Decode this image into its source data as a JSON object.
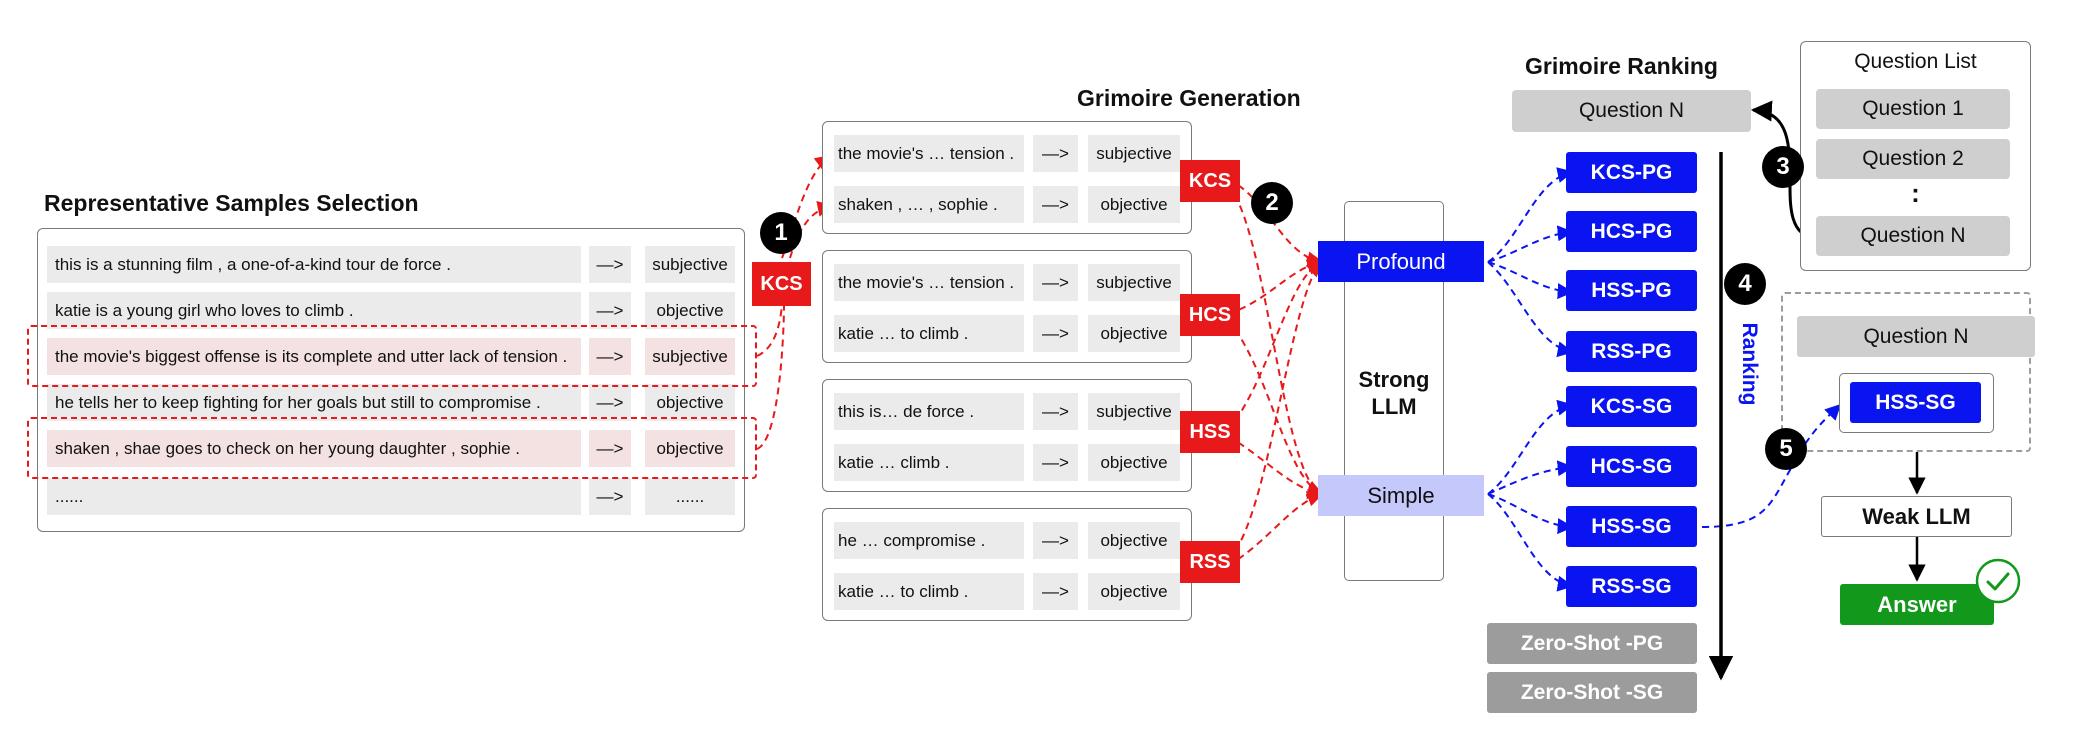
{
  "representative": {
    "title": "Representative Samples Selection",
    "rows": [
      {
        "text": "this is a stunning film , a one-of-a-kind tour de force .",
        "arrow": "—>",
        "label": "subjective"
      },
      {
        "text": "katie is a young girl who loves to climb .",
        "arrow": "—>",
        "label": "objective"
      },
      {
        "text": "the movie's biggest offense is its complete and utter lack of tension .",
        "arrow": "—>",
        "label": "subjective"
      },
      {
        "text": "he tells her to keep fighting for her goals but still to compromise .",
        "arrow": "—>",
        "label": "objective"
      },
      {
        "text": "shaken , shae goes to check on her young daughter , sophie .",
        "arrow": "—>",
        "label": "objective"
      },
      {
        "text": "......",
        "arrow": "—>",
        "label": "......"
      }
    ]
  },
  "generation": {
    "title": "Grimoire Generation",
    "groups": [
      {
        "method": "KCS",
        "rows": [
          {
            "text": "the movie's … tension .",
            "arrow": "—>",
            "label": "subjective"
          },
          {
            "text": "shaken , … , sophie .",
            "arrow": "—>",
            "label": "objective"
          }
        ]
      },
      {
        "method": "HCS",
        "rows": [
          {
            "text": "the movie's … tension .",
            "arrow": "—>",
            "label": "subjective"
          },
          {
            "text": "katie … to climb .",
            "arrow": "—>",
            "label": "objective"
          }
        ]
      },
      {
        "method": "HSS",
        "rows": [
          {
            "text": "this is… de force .",
            "arrow": "—>",
            "label": "subjective"
          },
          {
            "text": "katie … climb .",
            "arrow": "—>",
            "label": "objective"
          }
        ]
      },
      {
        "method": "RSS",
        "rows": [
          {
            "text": "he … compromise .",
            "arrow": "—>",
            "label": "objective"
          },
          {
            "text": "katie … to climb .",
            "arrow": "—>",
            "label": "objective"
          }
        ]
      }
    ],
    "selection_method": "KCS"
  },
  "llm": {
    "strong": "Strong\nLLM",
    "profound": "Profound",
    "simple": "Simple"
  },
  "grimoires": {
    "profound": [
      "KCS-PG",
      "HCS-PG",
      "HSS-PG",
      "RSS-PG"
    ],
    "simple": [
      "KCS-SG",
      "HCS-SG",
      "HSS-SG",
      "RSS-SG"
    ],
    "zero_shot": [
      "Zero-Shot -PG",
      "Zero-Shot -SG"
    ]
  },
  "ranking": {
    "title": "Grimoire Ranking",
    "question": "Question N",
    "label": "Ranking"
  },
  "question_list": {
    "title": "Question List",
    "items": [
      "Question 1",
      "Question 2",
      "Question N"
    ],
    "dots": ":"
  },
  "inference": {
    "question": "Question N",
    "selected": "HSS-SG",
    "weak_llm": "Weak LLM",
    "answer": "Answer"
  },
  "steps": [
    "1",
    "2",
    "3",
    "4",
    "5"
  ],
  "colors": {
    "red": "#e8191a",
    "blue": "#0a14f0",
    "light_blue": "#c4c8fa",
    "green": "#12991c",
    "gray": "#9c9c9c",
    "question_gray": "#cfcfcf"
  },
  "icons": {
    "check": "check-circle-icon"
  }
}
